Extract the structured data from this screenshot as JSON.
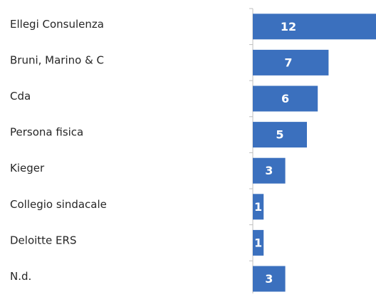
{
  "chart_data": {
    "type": "bar",
    "orientation": "horizontal",
    "categories": [
      "Ellegi Consulenza",
      "Bruni, Marino & C",
      "Cda",
      "Persona fisica",
      "Kieger",
      "Collegio sindacale",
      "Deloitte ERS",
      "N.d."
    ],
    "values": [
      12,
      7,
      6,
      5,
      3,
      1,
      1,
      3
    ],
    "color": "#3b70be"
  }
}
